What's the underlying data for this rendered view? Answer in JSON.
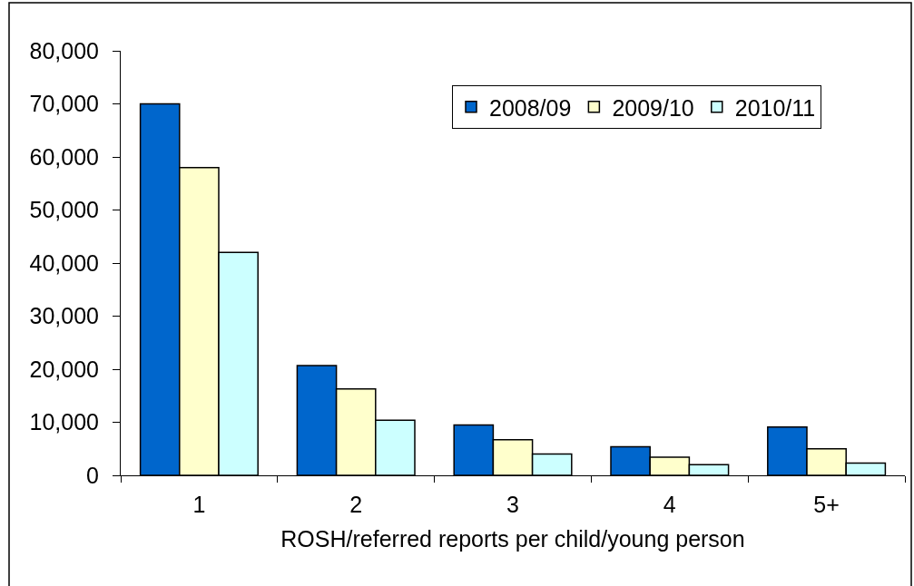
{
  "chart_data": {
    "type": "bar",
    "categories": [
      "1",
      "2",
      "3",
      "4",
      "5+"
    ],
    "xlabel": "ROSH/referred reports per child/young person",
    "series": [
      {
        "name": "2008/09",
        "color": "#0066cc",
        "values": [
          70000,
          20700,
          9500,
          5400,
          9100
        ]
      },
      {
        "name": "2009/10",
        "color": "#ffffcc",
        "values": [
          58000,
          16300,
          6700,
          3400,
          5000
        ]
      },
      {
        "name": "2010/11",
        "color": "#ccffff",
        "values": [
          42000,
          10400,
          4000,
          2000,
          2300
        ]
      }
    ],
    "ylim": [
      0,
      80000
    ],
    "yticks": [
      {
        "value": 0,
        "label": "0"
      },
      {
        "value": 10000,
        "label": "10,000"
      },
      {
        "value": 20000,
        "label": "20,000"
      },
      {
        "value": 30000,
        "label": "30,000"
      },
      {
        "value": 40000,
        "label": "40,000"
      },
      {
        "value": 50000,
        "label": "50,000"
      },
      {
        "value": 60000,
        "label": "60,000"
      },
      {
        "value": 70000,
        "label": "70,000"
      },
      {
        "value": 80000,
        "label": "80,000"
      }
    ],
    "grid": false,
    "legend": "top right"
  }
}
